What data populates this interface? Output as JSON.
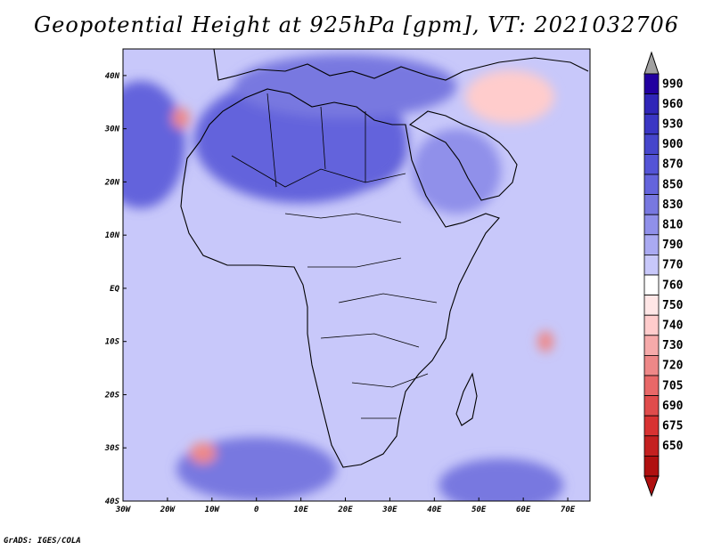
{
  "title": "Geopotential Height at 925hPa [gpm], VT: 2021032706",
  "credit": "GrADS: IGES/COLA",
  "axes": {
    "x_labels": [
      "30W",
      "20W",
      "10W",
      "0",
      "10E",
      "20E",
      "30E",
      "40E",
      "50E",
      "60E",
      "70E"
    ],
    "y_labels": [
      "40N",
      "30N",
      "20N",
      "10N",
      "EQ",
      "10S",
      "20S",
      "30S",
      "40S"
    ]
  },
  "colorbar": {
    "levels": [
      "990",
      "960",
      "930",
      "900",
      "870",
      "850",
      "830",
      "810",
      "790",
      "770",
      "760",
      "750",
      "740",
      "730",
      "720",
      "705",
      "690",
      "675",
      "650"
    ],
    "colors": [
      "#2200a0",
      "#3026b8",
      "#3a36c4",
      "#4646cc",
      "#5454d6",
      "#6464dc",
      "#7878e0",
      "#9090ea",
      "#aaaaf2",
      "#c8c8fa",
      "#ffffff",
      "#ffe6e6",
      "#ffcccc",
      "#f6aaaa",
      "#ee8888",
      "#e86868",
      "#e04c4c",
      "#d83232",
      "#c42020",
      "#b01010"
    ],
    "top_arrow_color": "#a0a0a0"
  },
  "map": {
    "background": "#c8c8fa",
    "lon_range": [
      -30,
      75
    ],
    "lat_range": [
      -40,
      45
    ],
    "features": [
      {
        "name": "sahara-high",
        "lon": 20,
        "lat": 27,
        "rx": 14,
        "ry": 9,
        "color": "#3a36c4"
      },
      {
        "name": "north-africa-ridge",
        "lon": 10,
        "lat": 28,
        "rx": 24,
        "ry": 12,
        "color": "#6464dc"
      },
      {
        "name": "mediterranean",
        "lon": 20,
        "lat": 38,
        "rx": 25,
        "ry": 6,
        "color": "#7878e0"
      },
      {
        "name": "atlantic-west",
        "lon": -26,
        "lat": 27,
        "rx": 10,
        "ry": 12,
        "color": "#6464dc"
      },
      {
        "name": "arabia",
        "lon": 45,
        "lat": 22,
        "rx": 10,
        "ry": 8,
        "color": "#9090ea"
      },
      {
        "name": "south-atlantic-high",
        "lon": 0,
        "lat": -34,
        "rx": 18,
        "ry": 6,
        "color": "#7878e0"
      },
      {
        "name": "south-indian-high",
        "lon": 55,
        "lat": -37,
        "rx": 14,
        "ry": 5,
        "color": "#7878e0"
      },
      {
        "name": "iran-low",
        "lon": 57,
        "lat": 36,
        "rx": 10,
        "ry": 5,
        "color": "#ffcccc"
      },
      {
        "name": "canary-low",
        "lon": -17,
        "lat": 32,
        "rx": 2,
        "ry": 2,
        "color": "#ee8888"
      },
      {
        "name": "indian-ocean-low",
        "lon": 65,
        "lat": -10,
        "rx": 1.8,
        "ry": 2,
        "color": "#ee8888"
      },
      {
        "name": "south-atlantic-low",
        "lon": -12,
        "lat": -31,
        "rx": 3,
        "ry": 2,
        "color": "#ee8888"
      }
    ]
  }
}
